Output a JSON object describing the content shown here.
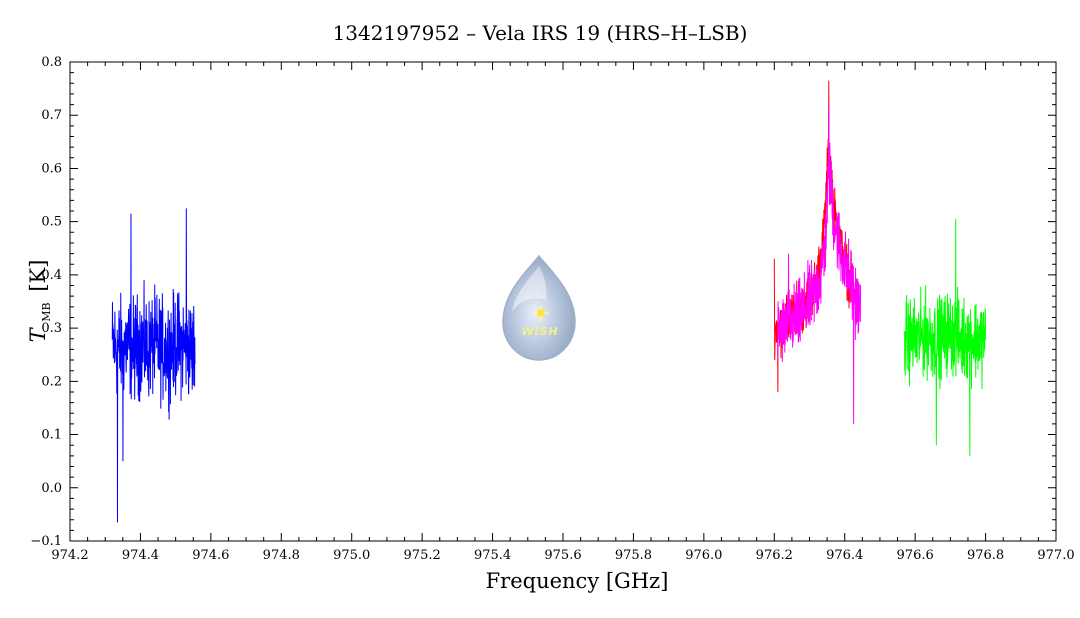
{
  "chart_data": {
    "type": "line",
    "title": "1342197952 – Vela IRS 19 (HRS–H–LSB)",
    "xlabel": "Frequency [GHz]",
    "ylabel": {
      "symbol": "T",
      "subscript": "MB",
      "unit": "[K]"
    },
    "xlim": [
      974.2,
      977.0
    ],
    "ylim": [
      -0.1,
      0.8
    ],
    "x_ticks": [
      "974.2",
      "974.4",
      "974.6",
      "974.8",
      "975.0",
      "975.2",
      "975.4",
      "975.6",
      "975.8",
      "976.0",
      "976.2",
      "976.4",
      "976.6",
      "976.8",
      "977.0"
    ],
    "y_ticks": [
      "−0.1",
      "0.0",
      "0.1",
      "0.2",
      "0.3",
      "0.4",
      "0.5",
      "0.6",
      "0.7",
      "0.8"
    ],
    "grid": false,
    "logo_text": "WISH",
    "series": [
      {
        "color": "#0000ff",
        "x": [
          974.32,
          974.34,
          974.36,
          974.38,
          974.4,
          974.42,
          974.44,
          974.46,
          974.48,
          974.5,
          974.52,
          974.54,
          974.555
        ],
        "y": [
          0.27,
          0.26,
          0.27,
          0.26,
          0.27,
          0.26,
          0.27,
          0.26,
          0.26,
          0.27,
          0.27,
          0.26,
          0.26
        ],
        "noise": 0.1,
        "spikes": [
          [
            974.335,
            -0.065
          ],
          [
            974.373,
            0.515
          ],
          [
            974.53,
            0.525
          ],
          [
            974.35,
            0.05
          ]
        ]
      },
      {
        "color": "#ff0000",
        "x": [
          976.2,
          976.22,
          976.24,
          976.26,
          976.28,
          976.3,
          976.32,
          976.34,
          976.355,
          976.37,
          976.39,
          976.41,
          976.43,
          976.44
        ],
        "y": [
          0.3,
          0.3,
          0.31,
          0.33,
          0.34,
          0.36,
          0.39,
          0.47,
          0.64,
          0.52,
          0.45,
          0.4,
          0.36,
          0.34
        ],
        "noise": 0.05,
        "spikes": [
          [
            976.355,
            0.765
          ],
          [
            976.2,
            0.43
          ],
          [
            976.21,
            0.18
          ]
        ]
      },
      {
        "color": "#ff00ff",
        "x": [
          976.21,
          976.23,
          976.25,
          976.27,
          976.29,
          976.31,
          976.33,
          976.345,
          976.355,
          976.37,
          976.39,
          976.41,
          976.43,
          976.445
        ],
        "y": [
          0.29,
          0.3,
          0.31,
          0.32,
          0.34,
          0.36,
          0.39,
          0.46,
          0.6,
          0.5,
          0.44,
          0.4,
          0.36,
          0.33
        ],
        "noise": 0.07,
        "spikes": [
          [
            976.355,
            0.72
          ],
          [
            976.425,
            0.12
          ],
          [
            976.24,
            0.44
          ]
        ]
      },
      {
        "color": "#00ff00",
        "x": [
          976.57,
          976.59,
          976.61,
          976.63,
          976.65,
          976.67,
          976.69,
          976.71,
          976.73,
          976.75,
          976.77,
          976.79,
          976.8
        ],
        "y": [
          0.28,
          0.28,
          0.28,
          0.29,
          0.28,
          0.28,
          0.29,
          0.29,
          0.28,
          0.28,
          0.28,
          0.28,
          0.28
        ],
        "noise": 0.08,
        "spikes": [
          [
            976.715,
            0.505
          ],
          [
            976.755,
            0.06
          ],
          [
            976.66,
            0.08
          ]
        ]
      }
    ]
  }
}
